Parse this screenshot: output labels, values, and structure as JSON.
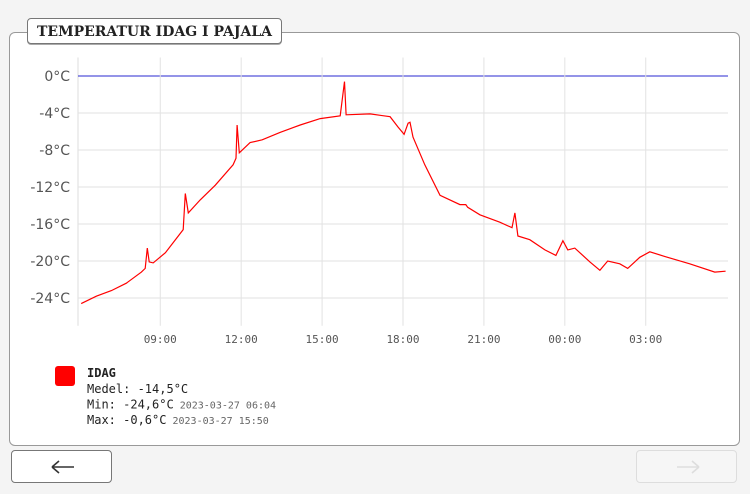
{
  "chart_data": {
    "type": "line",
    "title": "TEMPERATUR IDAG I PAJALA",
    "x": [
      6.07,
      6.63,
      7.19,
      7.74,
      8.3,
      8.44,
      8.52,
      8.59,
      8.74,
      9.19,
      9.56,
      9.85,
      9.93,
      10.04,
      10.48,
      11.04,
      11.7,
      11.81,
      11.85,
      11.93,
      12.33,
      12.78,
      13.44,
      14.19,
      14.93,
      15.67,
      15.83,
      15.89,
      16.78,
      17.52,
      17.81,
      18.04,
      18.19,
      18.26,
      18.37,
      18.81,
      19.37,
      20.11,
      20.33,
      20.4,
      20.85,
      21.59,
      22.04,
      22.15,
      22.26,
      22.7,
      23.26,
      23.67,
      23.93,
      24.11,
      24.37,
      24.93,
      25.3,
      25.59,
      26.04,
      26.33,
      26.78,
      27.15,
      27.7,
      28.63,
      29.56,
      29.96
    ],
    "series": [
      {
        "name": "IDAG",
        "color": "#ff0000",
        "values": [
          -24.6,
          -23.8,
          -23.2,
          -22.4,
          -21.2,
          -20.8,
          -18.6,
          -20.1,
          -20.2,
          -19.1,
          -17.7,
          -16.6,
          -12.7,
          -14.8,
          -13.4,
          -11.8,
          -9.6,
          -8.9,
          -5.3,
          -8.3,
          -7.2,
          -6.9,
          -6.1,
          -5.3,
          -4.6,
          -4.3,
          -0.6,
          -4.2,
          -4.1,
          -4.4,
          -5.5,
          -6.3,
          -5.1,
          -5.0,
          -6.6,
          -9.6,
          -12.9,
          -13.9,
          -13.9,
          -14.2,
          -15.0,
          -15.8,
          -16.4,
          -14.8,
          -17.3,
          -17.7,
          -18.8,
          -19.4,
          -17.8,
          -18.8,
          -18.6,
          -20.1,
          -21.0,
          -20.0,
          -20.3,
          -20.8,
          -19.6,
          -19.0,
          -19.5,
          -20.3,
          -21.2,
          -21.1
        ]
      }
    ],
    "xlim": [
      5.95,
      30.05
    ],
    "xticks": [
      {
        "value": 9,
        "label": "09:00"
      },
      {
        "value": 12,
        "label": "12:00"
      },
      {
        "value": 15,
        "label": "15:00"
      },
      {
        "value": 18,
        "label": "18:00"
      },
      {
        "value": 21,
        "label": "21:00"
      },
      {
        "value": 24,
        "label": "00:00"
      },
      {
        "value": 27,
        "label": "03:00"
      }
    ],
    "ylim": [
      -27,
      2
    ],
    "yticks": [
      {
        "value": 0,
        "label": "0°C"
      },
      {
        "value": -4,
        "label": "-4°C"
      },
      {
        "value": -8,
        "label": "-8°C"
      },
      {
        "value": -12,
        "label": "-12°C"
      },
      {
        "value": -16,
        "label": "-16°C"
      },
      {
        "value": -20,
        "label": "-20°C"
      },
      {
        "value": -24,
        "label": "-24°C"
      }
    ],
    "grid": true,
    "zero_line_color": "#2a2ad0",
    "legend_stats": [
      {
        "text": "Medel: -14,5°C"
      },
      {
        "text": "Min: -24,6°C",
        "time": "2023-03-27 06:04"
      },
      {
        "text": "Max: -0,6°C",
        "time": "2023-03-27 15:50"
      }
    ]
  }
}
